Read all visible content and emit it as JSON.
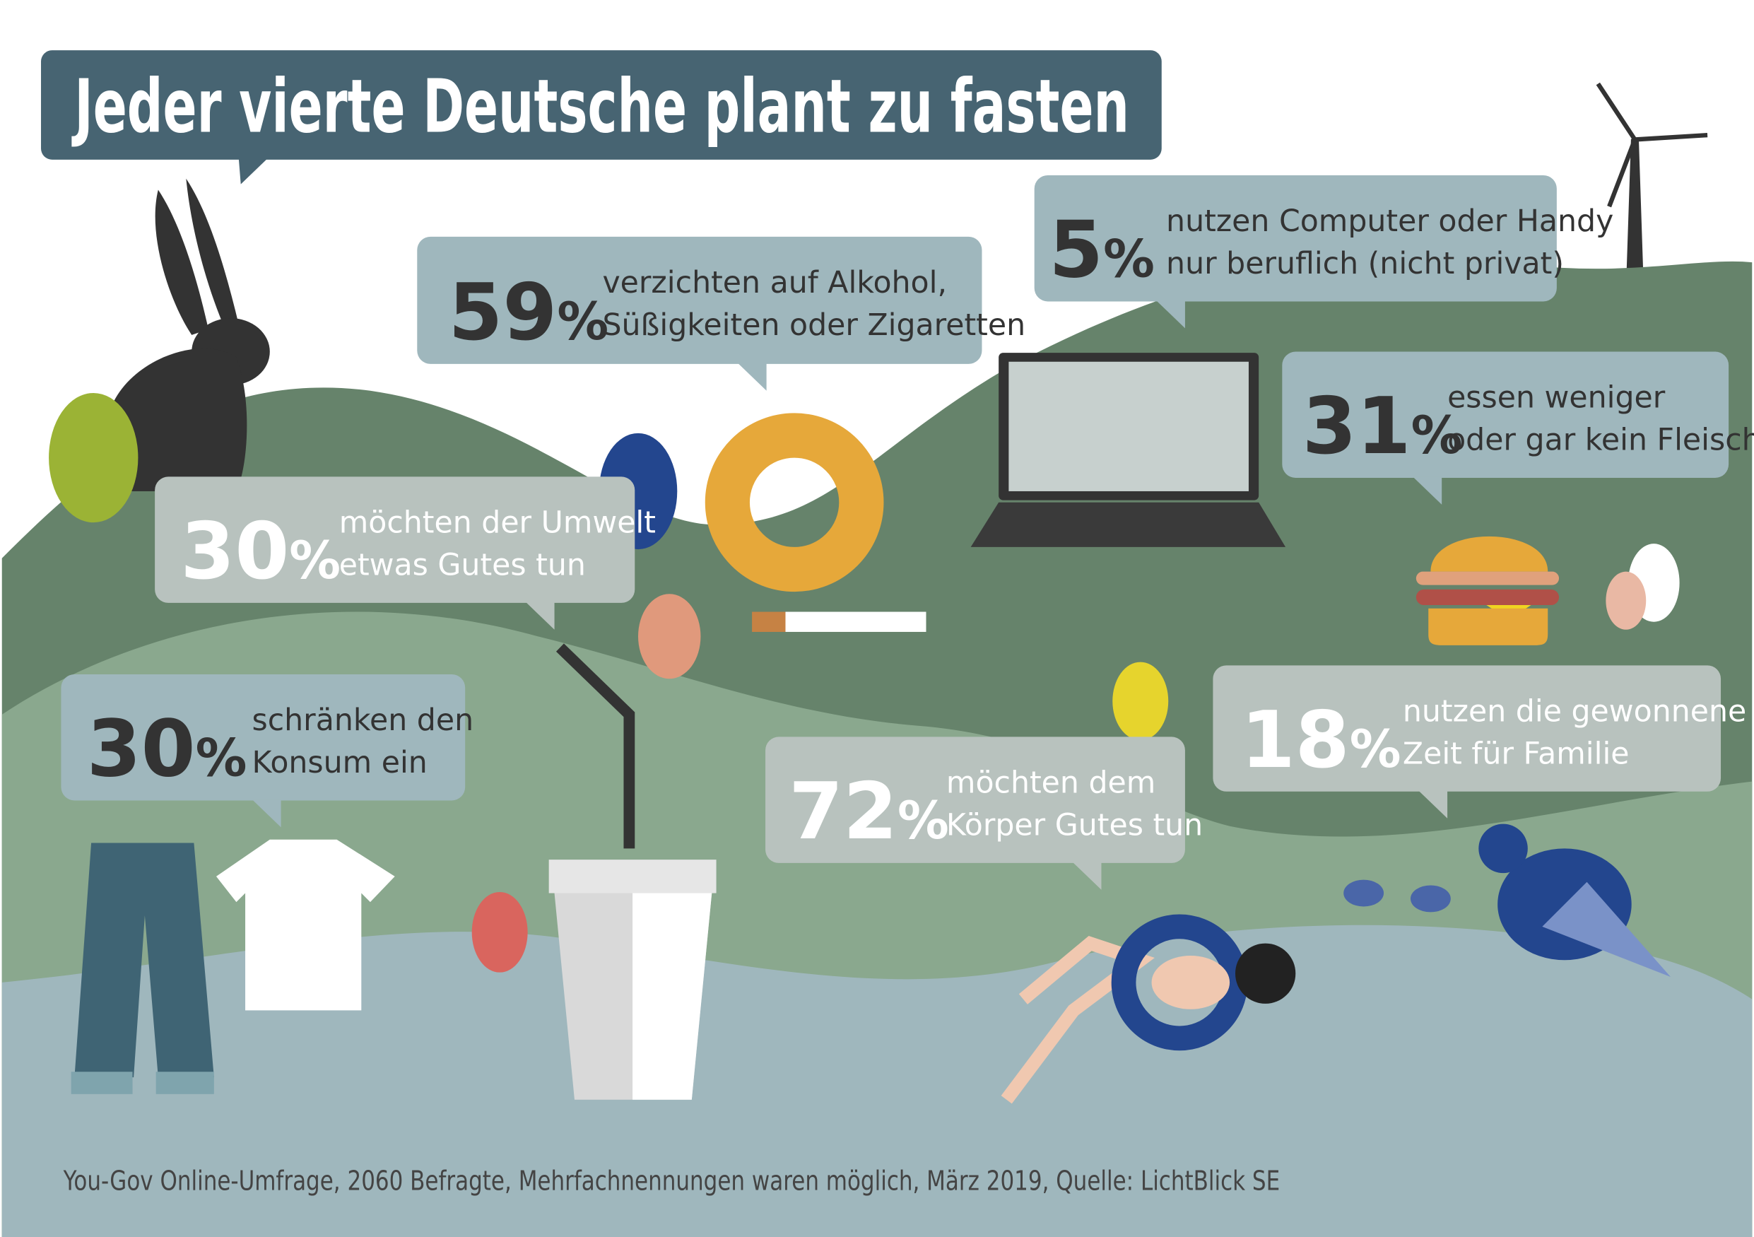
{
  "header": {
    "title": "Jeder vierte Deutsche plant zu fasten"
  },
  "callouts": [
    {
      "number": "59",
      "unit": "%",
      "lines": [
        "verzichten auf Alkohol,",
        "Süßigkeiten oder Zigaretten"
      ]
    },
    {
      "number": "5",
      "unit": "%",
      "lines": [
        "nutzen Computer oder Handy",
        "nur beruflich (nicht privat)"
      ]
    },
    {
      "number": "31",
      "unit": "%",
      "lines": [
        "essen weniger",
        "oder gar kein Fleisch"
      ]
    },
    {
      "number": "30",
      "unit": "%",
      "lines": [
        "möchten der Umwelt",
        "etwas Gutes tun"
      ]
    },
    {
      "number": "30",
      "unit": "%",
      "lines": [
        "schränken den",
        "Konsum ein"
      ]
    },
    {
      "number": "72",
      "unit": "%",
      "lines": [
        "möchten dem",
        "Körper Gutes tun"
      ]
    },
    {
      "number": "18",
      "unit": "%",
      "lines": [
        "nutzen die gewonnene",
        "Zeit für Familie"
      ]
    }
  ],
  "footer": {
    "source": "You-Gov Online-Umfrage, 2060 Befragte, Mehrfachnennungen waren möglich, März 2019, Quelle: LichtBlick SE"
  }
}
